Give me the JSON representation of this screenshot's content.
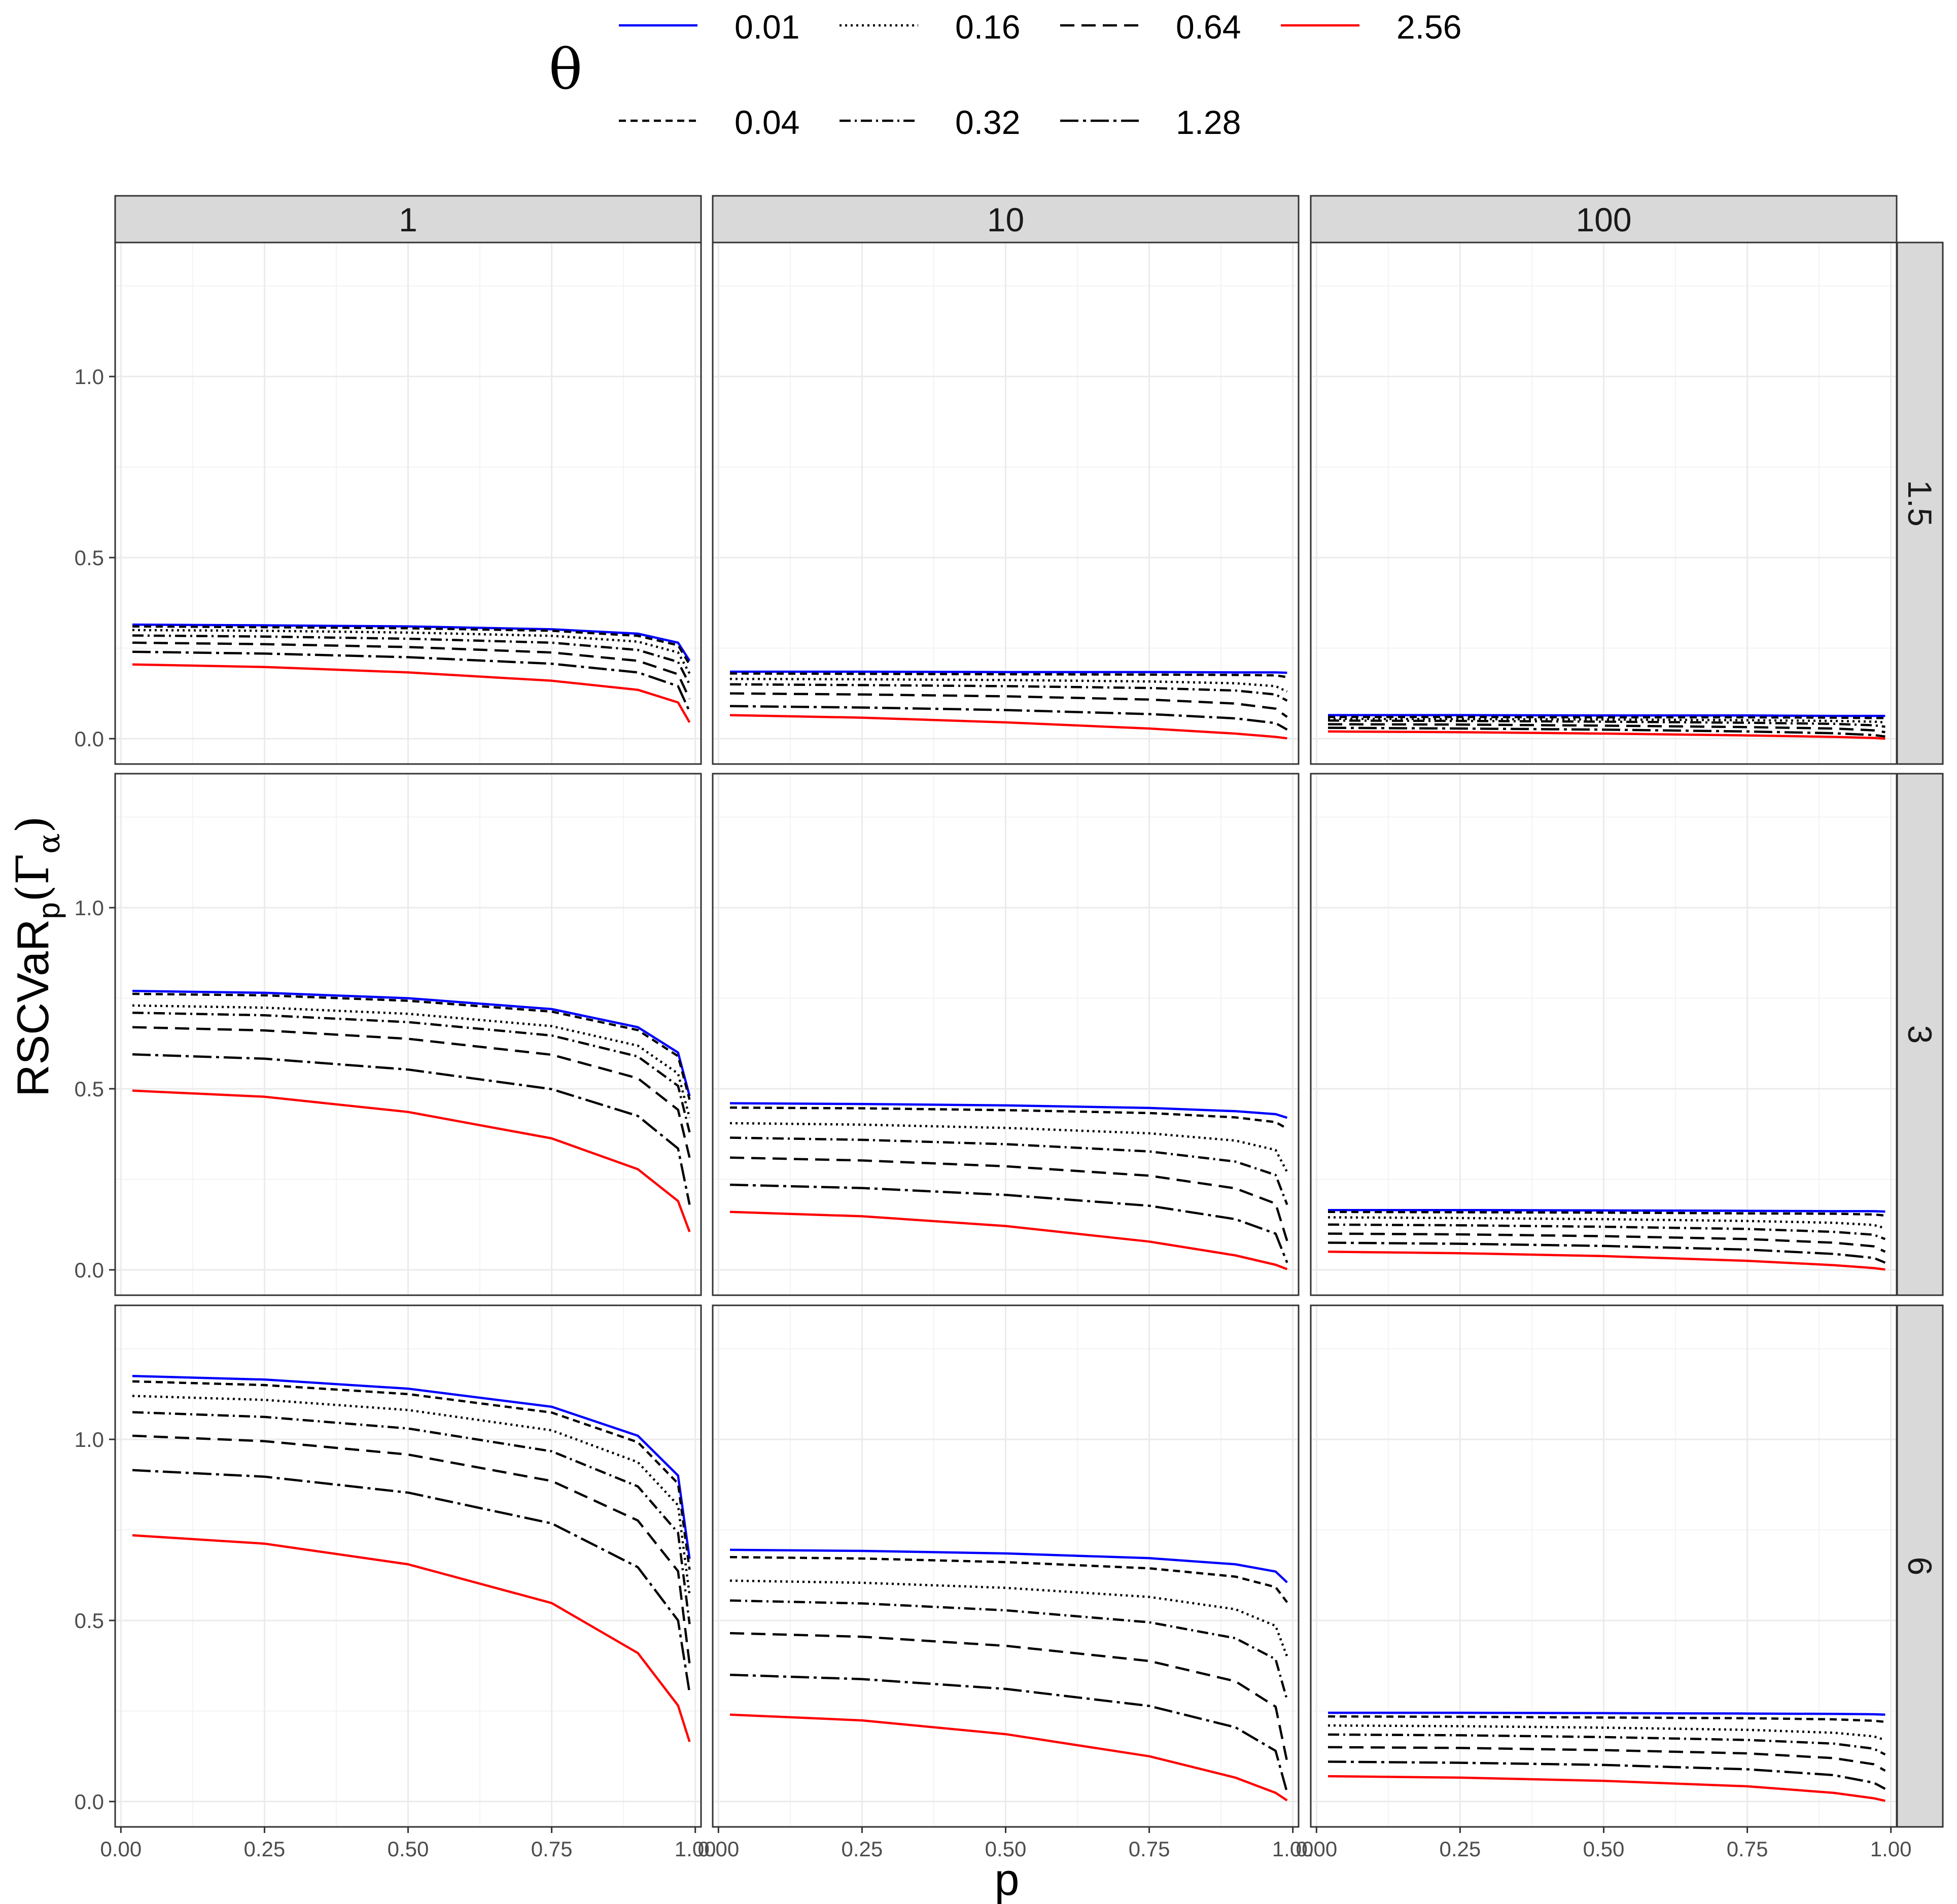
{
  "legend": {
    "title": "θ",
    "entries": [
      "0.01",
      "0.04",
      "0.16",
      "0.32",
      "0.64",
      "1.28",
      "2.56"
    ]
  },
  "colors": {
    "theta_0_01": "#0000ff",
    "theta_2_56": "#ff0000",
    "other": "#000000",
    "strip_fill": "#d9d9d9",
    "grid": "#ebebeb"
  },
  "axes": {
    "xlabel": "p",
    "ylabel_main": "RSCVaR",
    "ylabel_sub": "p",
    "ylabel_gamma": "(Γ",
    "ylabel_alpha": "α",
    "ylabel_close": ")",
    "x_ticks": [
      "0.00",
      "0.25",
      "0.50",
      "0.75",
      "1.00"
    ],
    "y_ticks": [
      "0.0",
      "0.5",
      "1.0"
    ]
  },
  "chart_data": {
    "type": "line",
    "facet_columns": [
      "1",
      "10",
      "100"
    ],
    "facet_rows": [
      "1.5",
      "3",
      "6"
    ],
    "xlim": [
      -0.01,
      1.01
    ],
    "ylim": [
      -0.07,
      1.37
    ],
    "grid": true,
    "legend_position": "top",
    "x": [
      0.02,
      0.25,
      0.5,
      0.75,
      0.9,
      0.97,
      0.99
    ],
    "panels": [
      {
        "row": "1.5",
        "col": "1",
        "series": [
          {
            "name": "0.01",
            "values": [
              0.315,
              0.313,
              0.31,
              0.302,
              0.29,
              0.265,
              0.215
            ]
          },
          {
            "name": "0.04",
            "values": [
              0.31,
              0.308,
              0.305,
              0.298,
              0.284,
              0.258,
              0.205
            ]
          },
          {
            "name": "0.16",
            "values": [
              0.3,
              0.298,
              0.293,
              0.284,
              0.268,
              0.238,
              0.18
            ]
          },
          {
            "name": "0.32",
            "values": [
              0.285,
              0.282,
              0.276,
              0.265,
              0.245,
              0.212,
              0.15
            ]
          },
          {
            "name": "0.64",
            "values": [
              0.265,
              0.261,
              0.253,
              0.238,
              0.215,
              0.178,
              0.11
            ]
          },
          {
            "name": "1.28",
            "values": [
              0.24,
              0.235,
              0.225,
              0.207,
              0.183,
              0.145,
              0.075
            ]
          },
          {
            "name": "2.56",
            "values": [
              0.205,
              0.198,
              0.183,
              0.16,
              0.135,
              0.1,
              0.045
            ]
          }
        ]
      },
      {
        "row": "1.5",
        "col": "10",
        "series": [
          {
            "name": "0.01",
            "values": [
              0.185,
              0.185,
              0.184,
              0.184,
              0.183,
              0.183,
              0.182
            ]
          },
          {
            "name": "0.04",
            "values": [
              0.18,
              0.179,
              0.178,
              0.177,
              0.176,
              0.175,
              0.17
            ]
          },
          {
            "name": "0.16",
            "values": [
              0.165,
              0.164,
              0.162,
              0.158,
              0.153,
              0.145,
              0.13
            ]
          },
          {
            "name": "0.32",
            "values": [
              0.15,
              0.148,
              0.145,
              0.14,
              0.133,
              0.122,
              0.105
            ]
          },
          {
            "name": "0.64",
            "values": [
              0.125,
              0.122,
              0.117,
              0.108,
              0.097,
              0.083,
              0.06
            ]
          },
          {
            "name": "1.28",
            "values": [
              0.09,
              0.086,
              0.079,
              0.068,
              0.056,
              0.043,
              0.025
            ]
          },
          {
            "name": "2.56",
            "values": [
              0.065,
              0.058,
              0.045,
              0.028,
              0.014,
              0.005,
              0.001
            ]
          }
        ]
      },
      {
        "row": "1.5",
        "col": "100",
        "series": [
          {
            "name": "0.01",
            "values": [
              0.065,
              0.065,
              0.064,
              0.064,
              0.063,
              0.063,
              0.063
            ]
          },
          {
            "name": "0.04",
            "values": [
              0.06,
              0.06,
              0.059,
              0.059,
              0.058,
              0.057,
              0.057
            ]
          },
          {
            "name": "0.16",
            "values": [
              0.055,
              0.054,
              0.053,
              0.051,
              0.049,
              0.047,
              0.045
            ]
          },
          {
            "name": "0.32",
            "values": [
              0.05,
              0.049,
              0.047,
              0.044,
              0.041,
              0.037,
              0.033
            ]
          },
          {
            "name": "0.64",
            "values": [
              0.04,
              0.039,
              0.036,
              0.032,
              0.028,
              0.023,
              0.018
            ]
          },
          {
            "name": "1.28",
            "values": [
              0.03,
              0.028,
              0.025,
              0.02,
              0.015,
              0.01,
              0.006
            ]
          },
          {
            "name": "2.56",
            "values": [
              0.02,
              0.018,
              0.014,
              0.009,
              0.005,
              0.002,
              0.0
            ]
          }
        ]
      },
      {
        "row": "3",
        "col": "1",
        "series": [
          {
            "name": "0.01",
            "values": [
              0.77,
              0.765,
              0.75,
              0.72,
              0.67,
              0.6,
              0.48
            ]
          },
          {
            "name": "0.04",
            "values": [
              0.762,
              0.758,
              0.743,
              0.713,
              0.662,
              0.59,
              0.47
            ]
          },
          {
            "name": "0.16",
            "values": [
              0.73,
              0.724,
              0.707,
              0.673,
              0.619,
              0.542,
              0.42
            ]
          },
          {
            "name": "0.32",
            "values": [
              0.71,
              0.703,
              0.684,
              0.647,
              0.589,
              0.508,
              0.38
            ]
          },
          {
            "name": "0.64",
            "values": [
              0.67,
              0.661,
              0.638,
              0.594,
              0.529,
              0.442,
              0.31
            ]
          },
          {
            "name": "1.28",
            "values": [
              0.595,
              0.583,
              0.553,
              0.499,
              0.425,
              0.335,
              0.18
            ]
          },
          {
            "name": "2.56",
            "values": [
              0.495,
              0.478,
              0.436,
              0.363,
              0.278,
              0.19,
              0.105
            ]
          }
        ]
      },
      {
        "row": "3",
        "col": "10",
        "series": [
          {
            "name": "0.01",
            "values": [
              0.46,
              0.458,
              0.454,
              0.447,
              0.438,
              0.43,
              0.42
            ]
          },
          {
            "name": "0.04",
            "values": [
              0.448,
              0.446,
              0.441,
              0.433,
              0.421,
              0.408,
              0.39
            ]
          },
          {
            "name": "0.16",
            "values": [
              0.405,
              0.401,
              0.392,
              0.377,
              0.357,
              0.331,
              0.27
            ]
          },
          {
            "name": "0.32",
            "values": [
              0.365,
              0.359,
              0.347,
              0.327,
              0.299,
              0.262,
              0.18
            ]
          },
          {
            "name": "0.64",
            "values": [
              0.31,
              0.302,
              0.286,
              0.26,
              0.225,
              0.183,
              0.08
            ]
          },
          {
            "name": "1.28",
            "values": [
              0.235,
              0.226,
              0.207,
              0.177,
              0.14,
              0.1,
              0.02
            ]
          },
          {
            "name": "2.56",
            "values": [
              0.16,
              0.148,
              0.121,
              0.078,
              0.04,
              0.014,
              0.002
            ]
          }
        ]
      },
      {
        "row": "3",
        "col": "100",
        "series": [
          {
            "name": "0.01",
            "values": [
              0.165,
              0.165,
              0.164,
              0.163,
              0.162,
              0.162,
              0.161
            ]
          },
          {
            "name": "0.04",
            "values": [
              0.16,
              0.159,
              0.158,
              0.156,
              0.155,
              0.153,
              0.15
            ]
          },
          {
            "name": "0.16",
            "values": [
              0.145,
              0.143,
              0.14,
              0.135,
              0.13,
              0.124,
              0.115
            ]
          },
          {
            "name": "0.32",
            "values": [
              0.125,
              0.123,
              0.119,
              0.113,
              0.105,
              0.097,
              0.085
            ]
          },
          {
            "name": "0.64",
            "values": [
              0.1,
              0.098,
              0.093,
              0.085,
              0.075,
              0.065,
              0.05
            ]
          },
          {
            "name": "1.28",
            "values": [
              0.075,
              0.072,
              0.066,
              0.056,
              0.044,
              0.033,
              0.02
            ]
          },
          {
            "name": "2.56",
            "values": [
              0.05,
              0.046,
              0.038,
              0.025,
              0.013,
              0.005,
              0.001
            ]
          }
        ]
      },
      {
        "row": "6",
        "col": "1",
        "series": [
          {
            "name": "0.01",
            "values": [
              1.175,
              1.165,
              1.14,
              1.09,
              1.01,
              0.9,
              0.67
            ]
          },
          {
            "name": "0.04",
            "values": [
              1.16,
              1.15,
              1.125,
              1.074,
              0.992,
              0.878,
              0.64
            ]
          },
          {
            "name": "0.16",
            "values": [
              1.12,
              1.109,
              1.081,
              1.025,
              0.937,
              0.818,
              0.57
            ]
          },
          {
            "name": "0.32",
            "values": [
              1.075,
              1.062,
              1.03,
              0.967,
              0.87,
              0.742,
              0.49
            ]
          },
          {
            "name": "0.64",
            "values": [
              1.01,
              0.995,
              0.958,
              0.885,
              0.776,
              0.636,
              0.38
            ]
          },
          {
            "name": "1.28",
            "values": [
              0.915,
              0.897,
              0.853,
              0.768,
              0.647,
              0.5,
              0.3
            ]
          },
          {
            "name": "2.56",
            "values": [
              0.735,
              0.712,
              0.655,
              0.548,
              0.41,
              0.265,
              0.165
            ]
          }
        ]
      },
      {
        "row": "6",
        "col": "10",
        "series": [
          {
            "name": "0.01",
            "values": [
              0.695,
              0.692,
              0.685,
              0.672,
              0.655,
              0.635,
              0.605
            ]
          },
          {
            "name": "0.04",
            "values": [
              0.675,
              0.671,
              0.661,
              0.644,
              0.621,
              0.592,
              0.55
            ]
          },
          {
            "name": "0.16",
            "values": [
              0.61,
              0.604,
              0.59,
              0.565,
              0.531,
              0.485,
              0.4
            ]
          },
          {
            "name": "0.32",
            "values": [
              0.555,
              0.547,
              0.528,
              0.495,
              0.451,
              0.393,
              0.28
            ]
          },
          {
            "name": "0.64",
            "values": [
              0.465,
              0.455,
              0.43,
              0.388,
              0.332,
              0.262,
              0.11
            ]
          },
          {
            "name": "1.28",
            "values": [
              0.35,
              0.338,
              0.311,
              0.264,
              0.205,
              0.14,
              0.025
            ]
          },
          {
            "name": "2.56",
            "values": [
              0.24,
              0.224,
              0.186,
              0.125,
              0.066,
              0.024,
              0.003
            ]
          }
        ]
      },
      {
        "row": "6",
        "col": "100",
        "series": [
          {
            "name": "0.01",
            "values": [
              0.245,
              0.245,
              0.244,
              0.243,
              0.242,
              0.241,
              0.24
            ]
          },
          {
            "name": "0.04",
            "values": [
              0.235,
              0.234,
              0.232,
              0.23,
              0.227,
              0.223,
              0.22
            ]
          },
          {
            "name": "0.16",
            "values": [
              0.21,
              0.208,
              0.204,
              0.198,
              0.19,
              0.18,
              0.17
            ]
          },
          {
            "name": "0.32",
            "values": [
              0.185,
              0.183,
              0.178,
              0.17,
              0.16,
              0.146,
              0.13
            ]
          },
          {
            "name": "0.64",
            "values": [
              0.15,
              0.148,
              0.142,
              0.133,
              0.12,
              0.103,
              0.085
            ]
          },
          {
            "name": "1.28",
            "values": [
              0.11,
              0.107,
              0.101,
              0.089,
              0.073,
              0.052,
              0.035
            ]
          },
          {
            "name": "2.56",
            "values": [
              0.07,
              0.066,
              0.057,
              0.042,
              0.024,
              0.009,
              0.002
            ]
          }
        ]
      }
    ]
  }
}
